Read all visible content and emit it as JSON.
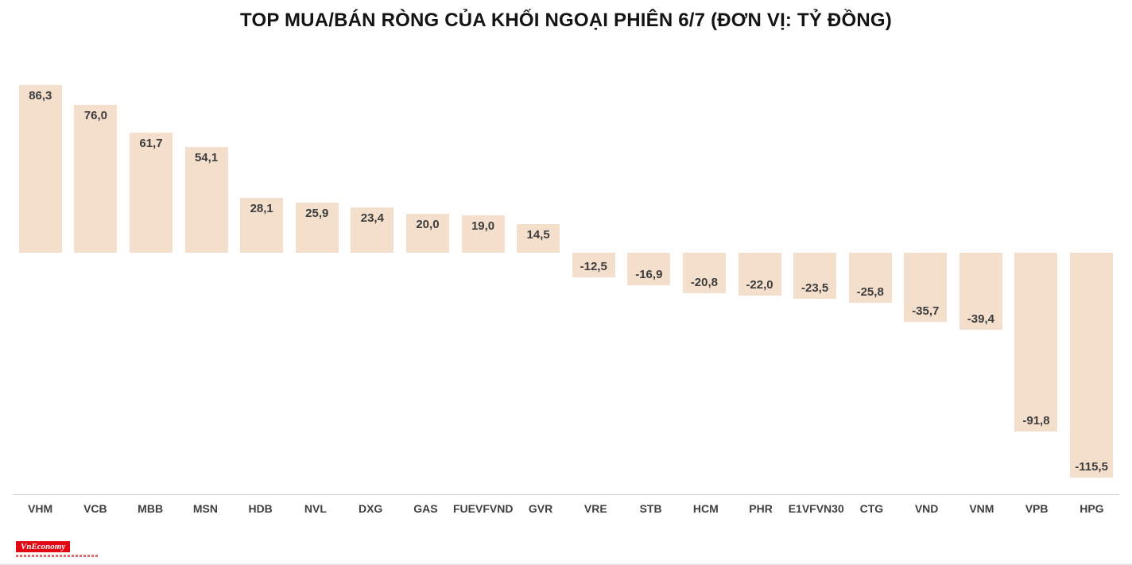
{
  "title": "TOP MUA/BÁN RÒNG CỦA KHỐI NGOẠI PHIÊN 6/7 (ĐƠN VỊ: TỶ ĐỒNG)",
  "chart_data": {
    "type": "bar",
    "title": "TOP MUA/BÁN RÒNG CỦA KHỐI NGOẠI PHIÊN 6/7 (ĐƠN VỊ: TỶ ĐỒNG)",
    "categories": [
      "VHM",
      "VCB",
      "MBB",
      "MSN",
      "HDB",
      "NVL",
      "DXG",
      "GAS",
      "FUEVFVND",
      "GVR",
      "VRE",
      "STB",
      "HCM",
      "PHR",
      "E1VFVN30",
      "CTG",
      "VND",
      "VNM",
      "VPB",
      "HPG"
    ],
    "values": [
      86.3,
      76.0,
      61.7,
      54.1,
      28.1,
      25.9,
      23.4,
      20.0,
      19.0,
      14.5,
      -12.5,
      -16.9,
      -20.8,
      -22.0,
      -23.5,
      -25.8,
      -35.7,
      -39.4,
      -91.8,
      -115.5
    ],
    "value_labels": [
      "86,3",
      "76,0",
      "61,7",
      "54,1",
      "28,1",
      "25,9",
      "23,4",
      "20,0",
      "19,0",
      "14,5",
      "-12,5",
      "-16,9",
      "-20,8",
      "-22,0",
      "-23,5",
      "-25,8",
      "-35,7",
      "-39,4",
      "-91,8",
      "-115,5"
    ],
    "xlabel": "",
    "ylabel": "",
    "unit": "tỷ đồng",
    "ylim": [
      -120,
      90
    ],
    "grid": false,
    "legend": "none",
    "bar_color": "#f4dfcc",
    "value_label_color": "#3d3d3d",
    "axis_line_color": "#cfcfcf"
  },
  "branding": {
    "logo_text": "VnEconomy",
    "logo_bg": "#e30613",
    "logo_text_color": "#ffffff"
  }
}
